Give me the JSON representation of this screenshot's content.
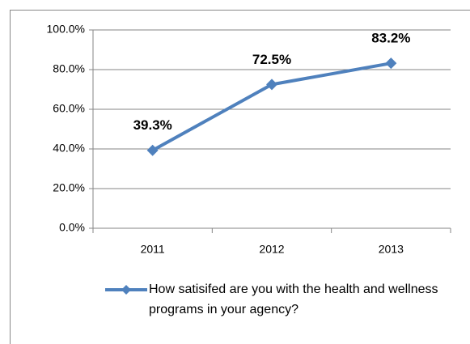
{
  "chart_data": {
    "type": "line",
    "categories": [
      "2011",
      "2012",
      "2013"
    ],
    "series": [
      {
        "name": "How satisifed are you with the health and wellness programs in your agency?",
        "color": "#4f81bd",
        "values": [
          39.3,
          72.5,
          83.2
        ],
        "value_labels": [
          "39.3%",
          "72.5%",
          "83.2%"
        ]
      }
    ],
    "ylim": [
      0,
      100
    ],
    "yticks": [
      {
        "value": 0,
        "label": "0.0%"
      },
      {
        "value": 20,
        "label": "20.0%"
      },
      {
        "value": 40,
        "label": "40.0%"
      },
      {
        "value": 60,
        "label": "60.0%"
      },
      {
        "value": 80,
        "label": "80.0%"
      },
      {
        "value": 100,
        "label": "100.0%"
      }
    ],
    "grid": true,
    "legend": "bottom"
  }
}
